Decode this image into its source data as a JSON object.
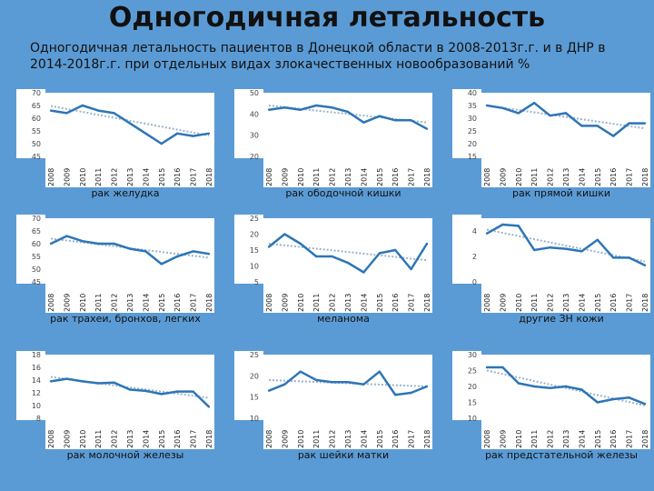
{
  "title": "Одногодичная летальность",
  "subtitle": "Одногодичная летальность пациентов в Донецкой области в 2008-2013г.г. и в ДНР в 2014-2018г.г. при отдельных видах злокачественных новообразований %",
  "colors": {
    "background": "#5b9bd5",
    "plot_bg": "#ffffff",
    "series": "#2e75b6",
    "trend": "#9bb3cc"
  },
  "chart_data": [
    {
      "type": "line",
      "caption": "рак желудка",
      "x": [
        "2008",
        "2009",
        "2010",
        "2011",
        "2012",
        "2013",
        "2014",
        "2015",
        "2016",
        "2017",
        "2018"
      ],
      "values": [
        63,
        62,
        65,
        63,
        62,
        58,
        54,
        50,
        54,
        53,
        54
      ],
      "trend": [
        64.8,
        53.2
      ],
      "ylim": [
        45,
        70
      ],
      "yticks": [
        "70",
        "65",
        "60",
        "55",
        "50",
        "45"
      ]
    },
    {
      "type": "line",
      "caption": "рак ободочной кишки",
      "x": [
        "2008",
        "2009",
        "2010",
        "2011",
        "2012",
        "2013",
        "2014",
        "2015",
        "2016",
        "2017",
        "2018"
      ],
      "values": [
        42,
        43,
        42,
        44,
        43,
        41,
        36,
        39,
        37,
        37,
        33
      ],
      "trend": [
        44,
        36
      ],
      "ylim": [
        20,
        50
      ],
      "yticks": [
        "50",
        "40",
        "30",
        "20"
      ]
    },
    {
      "type": "line",
      "caption": "рак прямой кишки",
      "x": [
        "2008",
        "2009",
        "2010",
        "2011",
        "2012",
        "2013",
        "2014",
        "2015",
        "2016",
        "2017",
        "2018"
      ],
      "values": [
        35,
        34,
        32,
        36,
        31,
        32,
        27,
        27,
        23,
        28,
        28
      ],
      "trend": [
        35,
        26
      ],
      "ylim": [
        15,
        40
      ],
      "yticks": [
        "40",
        "35",
        "30",
        "25",
        "20",
        "15"
      ]
    },
    {
      "type": "line",
      "caption": "рак трахеи, бронхов, легких",
      "x": [
        "2008",
        "2009",
        "2010",
        "2011",
        "2012",
        "2013",
        "2014",
        "2015",
        "2016",
        "2017",
        "2018"
      ],
      "values": [
        60,
        63,
        61,
        60,
        60,
        58,
        57,
        52,
        55,
        57,
        56
      ],
      "trend": [
        62,
        54.5
      ],
      "ylim": [
        45,
        70
      ],
      "yticks": [
        "70",
        "65",
        "60",
        "55",
        "50",
        "45"
      ]
    },
    {
      "type": "line",
      "caption": "меланома",
      "x": [
        "2008",
        "2009",
        "2010",
        "2011",
        "2012",
        "2013",
        "2014",
        "2015",
        "2016",
        "2017",
        "2018"
      ],
      "values": [
        16,
        20,
        17,
        13,
        13,
        11,
        8,
        14,
        15,
        9,
        17
      ],
      "trend": [
        17,
        11.8
      ],
      "ylim": [
        5,
        25
      ],
      "yticks": [
        "25",
        "20",
        "15",
        "10",
        "5"
      ]
    },
    {
      "type": "line",
      "caption": "другие ЗН кожи",
      "x": [
        "2008",
        "2009",
        "2010",
        "2011",
        "2012",
        "2013",
        "2014",
        "2015",
        "2016",
        "2017",
        "2018"
      ],
      "values": [
        3.8,
        4.5,
        4.4,
        2.5,
        2.7,
        2.6,
        2.4,
        3.3,
        1.9,
        1.9,
        1.3
      ],
      "trend": [
        4.1,
        1.6
      ],
      "ylim": [
        0,
        5
      ],
      "yticks": [
        "4",
        "2",
        "0"
      ]
    },
    {
      "type": "line",
      "caption": "рак молочной железы",
      "x": [
        "2008",
        "2009",
        "2010",
        "2011",
        "2012",
        "2013",
        "2014",
        "2015",
        "2016",
        "2017",
        "2018"
      ],
      "values": [
        13.8,
        14.2,
        13.8,
        13.5,
        13.6,
        12.5,
        12.3,
        11.8,
        12.2,
        12.2,
        9.8
      ],
      "trend": [
        14.5,
        11.2
      ],
      "ylim": [
        8,
        18
      ],
      "yticks": [
        "18",
        "16",
        "14",
        "12",
        "10",
        "8"
      ]
    },
    {
      "type": "line",
      "caption": "рак шейки матки",
      "x": [
        "2008",
        "2009",
        "2010",
        "2011",
        "2012",
        "2013",
        "2014",
        "2015",
        "2016",
        "2017",
        "2018"
      ],
      "values": [
        16.5,
        18,
        21,
        19,
        18.5,
        18.5,
        18,
        21,
        15.5,
        16,
        17.5
      ],
      "trend": [
        19,
        17.5
      ],
      "ylim": [
        10,
        25
      ],
      "yticks": [
        "25",
        "20",
        "15",
        "10"
      ]
    },
    {
      "type": "line",
      "caption": "рак предстательной железы",
      "x": [
        "2008",
        "2009",
        "2010",
        "2011",
        "2012",
        "2013",
        "2014",
        "2015",
        "2016",
        "2017",
        "2018"
      ],
      "values": [
        26,
        26,
        21,
        20,
        19.5,
        20,
        19,
        15,
        16,
        16.5,
        14.5
      ],
      "trend": [
        25,
        14
      ],
      "ylim": [
        10,
        30
      ],
      "yticks": [
        "30",
        "25",
        "20",
        "15",
        "10"
      ]
    }
  ]
}
